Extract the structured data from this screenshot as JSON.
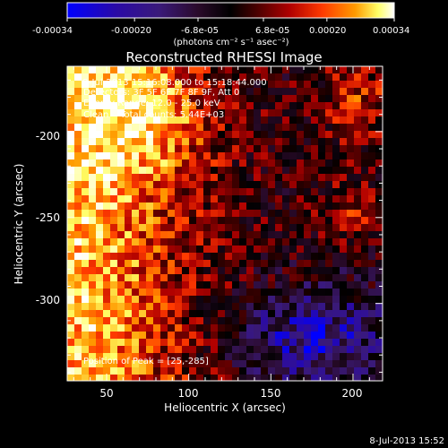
{
  "colorbar": {
    "ticks": [
      "-0.00034",
      "-0.00020",
      "-6.8e-05",
      "6.8e-05",
      "0.00020",
      "0.00034"
    ],
    "range": [
      -0.00034,
      0.00034
    ],
    "units": "(photons cm⁻² s⁻¹ asec⁻²)",
    "colormap": [
      "#0000ff",
      "#2a0aa6",
      "#3a1a7a",
      "#2a0a2a",
      "#000000",
      "#4a0000",
      "#b00000",
      "#ff3a00",
      "#ff9a00",
      "#ffff66",
      "#ffffff"
    ]
  },
  "chart_data": {
    "type": "heatmap",
    "title": "Reconstructed RHESSI Image",
    "xlabel": "Heliocentric X (arcsec)",
    "ylabel": "Heliocentric Y (arcsec)",
    "xlim": [
      26,
      218
    ],
    "ylim": [
      -345,
      -162
    ],
    "xticks": [
      50,
      100,
      150,
      200
    ],
    "yticks": [
      -200,
      -250,
      -300
    ],
    "annotations": [
      "8-Jul-2013 15:16:08.000 to 15:18:44.000",
      "Detectors: 3F 5F 6F 7F 8F 9F, Att 0",
      "Energy Range: 12.0 - 25.0 keV",
      "Clean    Total counts: 5.44E+03"
    ],
    "peak_label": "Position of Peak = [25,-285]",
    "peak_position": [
      25,
      -285
    ],
    "total_counts": 5440,
    "energy_range_kev": [
      12.0,
      25.0
    ],
    "grid": false
  },
  "footer": {
    "timestamp": "8-Jul-2013 15:52"
  }
}
